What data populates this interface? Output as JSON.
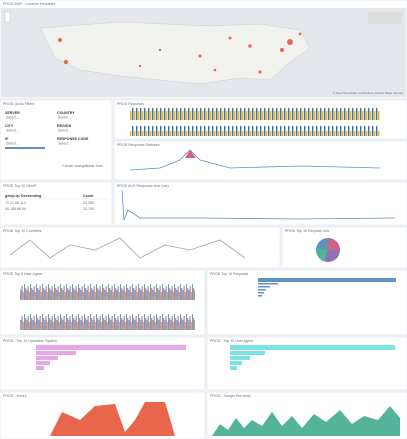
{
  "map": {
    "title": "PROD WAF - Location Requests",
    "attribution": "© OpenStreetMap contributors, Elastic Maps Service"
  },
  "filters": {
    "title": "PROD Quick Filters",
    "fields": [
      {
        "label": "SERVER",
        "placeholder": "Select..."
      },
      {
        "label": "COUNTRY",
        "placeholder": "Select..."
      },
      {
        "label": "CITY",
        "placeholder": "Select..."
      },
      {
        "label": "REGION",
        "placeholder": "Select..."
      },
      {
        "label": "IP",
        "placeholder": "Select..."
      },
      {
        "label": "RESPONSE CODE",
        "placeholder": "Select..."
      }
    ],
    "buttons": [
      "Cancel changes",
      "Clear form"
    ]
  },
  "table": {
    "title": "PROD Top 10 GeoIP",
    "columns": [
      "geoip.ip: Descending",
      "Count"
    ],
    "rows": [
      [
        "72.21.66.114",
        "23,060"
      ],
      [
        "50.185.68.94",
        "13,700"
      ]
    ]
  },
  "panels": [
    "PROD Requests",
    "PROD Response Statuses",
    "PROD AVG Response time (ms)",
    "PROD Top 10 Countries",
    "PROD Top 10 Request Uris",
    "PROD Top 8 User Agent",
    "PROD Top 10 Requests",
    "PROD - Top 10 Operation System",
    "PROD - Top 10 User Agent",
    "PROD - Errors",
    "PROD - Google Bot visits"
  ]
}
